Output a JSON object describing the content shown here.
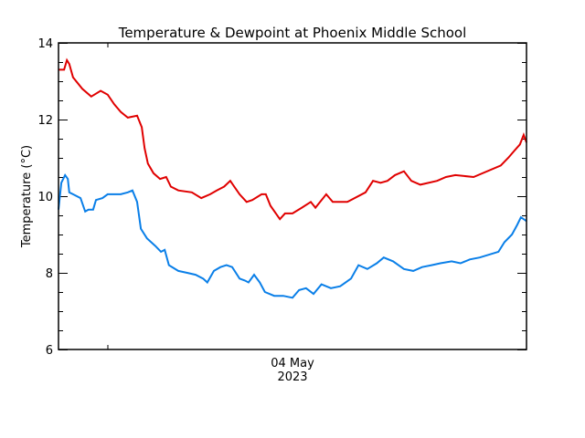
{
  "chart_data": {
    "type": "line",
    "title": "Temperature & Dewpoint at Phoenix Middle School",
    "xlabel": "",
    "ylabel": "Temperature (°C)",
    "ylim": [
      6,
      14
    ],
    "yticks": [
      6,
      8,
      10,
      12,
      14
    ],
    "y_minor_step": 0.5,
    "xtick_labels": [
      {
        "label": "04 May",
        "sublabel": "2023",
        "x_frac": 0.5
      }
    ],
    "grid": false,
    "legend": null,
    "x_units": "fraction of time window (0 = start, 1 = end)",
    "series": [
      {
        "name": "Temperature",
        "color": "#e00000",
        "x": [
          0.0,
          0.012,
          0.018,
          0.023,
          0.031,
          0.051,
          0.07,
          0.09,
          0.105,
          0.119,
          0.133,
          0.148,
          0.168,
          0.178,
          0.184,
          0.191,
          0.203,
          0.217,
          0.23,
          0.24,
          0.256,
          0.285,
          0.305,
          0.324,
          0.338,
          0.354,
          0.367,
          0.387,
          0.402,
          0.414,
          0.434,
          0.443,
          0.453,
          0.473,
          0.484,
          0.5,
          0.52,
          0.539,
          0.549,
          0.559,
          0.572,
          0.586,
          0.617,
          0.656,
          0.672,
          0.688,
          0.703,
          0.719,
          0.738,
          0.754,
          0.773,
          0.809,
          0.828,
          0.848,
          0.887,
          0.945,
          0.961,
          0.975,
          0.986,
          0.994,
          1.0
        ],
        "values": [
          13.3,
          13.3,
          13.55,
          13.45,
          13.1,
          12.8,
          12.6,
          12.75,
          12.65,
          12.4,
          12.2,
          12.05,
          12.1,
          11.8,
          11.25,
          10.85,
          10.6,
          10.45,
          10.5,
          10.25,
          10.15,
          10.1,
          9.95,
          10.05,
          10.15,
          10.25,
          10.4,
          10.05,
          9.85,
          9.9,
          10.05,
          10.05,
          9.75,
          9.4,
          9.55,
          9.55,
          9.7,
          9.85,
          9.7,
          9.85,
          10.05,
          9.85,
          9.85,
          10.1,
          10.4,
          10.35,
          10.4,
          10.55,
          10.65,
          10.4,
          10.3,
          10.4,
          10.5,
          10.55,
          10.5,
          10.8,
          11.0,
          11.2,
          11.35,
          11.6,
          11.4
        ]
      },
      {
        "name": "Dewpoint",
        "color": "#0a7fe8",
        "x": [
          0.0,
          0.006,
          0.014,
          0.02,
          0.023,
          0.031,
          0.047,
          0.057,
          0.064,
          0.074,
          0.08,
          0.094,
          0.105,
          0.119,
          0.133,
          0.148,
          0.158,
          0.168,
          0.176,
          0.189,
          0.207,
          0.219,
          0.227,
          0.236,
          0.256,
          0.275,
          0.293,
          0.309,
          0.318,
          0.332,
          0.346,
          0.359,
          0.371,
          0.387,
          0.398,
          0.406,
          0.418,
          0.43,
          0.441,
          0.461,
          0.48,
          0.5,
          0.514,
          0.529,
          0.545,
          0.562,
          0.582,
          0.602,
          0.625,
          0.641,
          0.66,
          0.68,
          0.695,
          0.715,
          0.738,
          0.758,
          0.777,
          0.797,
          0.816,
          0.84,
          0.859,
          0.879,
          0.9,
          0.94,
          0.953,
          0.969,
          0.98,
          0.988,
          1.0
        ],
        "values": [
          9.65,
          10.35,
          10.55,
          10.45,
          10.1,
          10.05,
          9.95,
          9.6,
          9.65,
          9.65,
          9.9,
          9.95,
          10.05,
          10.05,
          10.05,
          10.1,
          10.15,
          9.85,
          9.15,
          8.9,
          8.7,
          8.55,
          8.6,
          8.2,
          8.05,
          8.0,
          7.95,
          7.85,
          7.75,
          8.05,
          8.15,
          8.2,
          8.15,
          7.85,
          7.8,
          7.75,
          7.95,
          7.75,
          7.5,
          7.4,
          7.4,
          7.35,
          7.55,
          7.6,
          7.45,
          7.7,
          7.6,
          7.65,
          7.85,
          8.2,
          8.1,
          8.25,
          8.4,
          8.3,
          8.1,
          8.05,
          8.15,
          8.2,
          8.25,
          8.3,
          8.25,
          8.35,
          8.4,
          8.55,
          8.8,
          9.0,
          9.25,
          9.45,
          9.35
        ]
      }
    ]
  },
  "labels": {
    "title": "Temperature & Dewpoint at Phoenix Middle School",
    "ylabel": "Temperature (°C)",
    "xtick_date": "04 May",
    "xtick_year": "2023",
    "yticks": [
      "14",
      "12",
      "10",
      "8",
      "6"
    ]
  }
}
